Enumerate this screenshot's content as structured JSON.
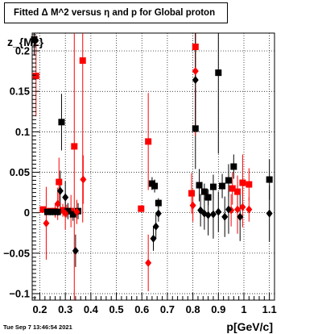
{
  "title": "Fitted Δ M^2 versus η and p for Global proton",
  "timestamp": "Tue Sep  7 13:46:54 2021",
  "chart_data": {
    "type": "scatter",
    "xlabel": "p[GeV/c]",
    "ylabel": "z_{M2}",
    "xlim": [
      0.17,
      1.12
    ],
    "ylim": [
      -0.108,
      0.222
    ],
    "grid": true,
    "x_ticks": [
      0.2,
      0.3,
      0.4,
      0.5,
      0.6,
      0.7,
      0.8,
      0.9,
      1.0,
      1.1
    ],
    "x_tick_labels": [
      "0.2",
      "0.3",
      "0.4",
      "0.5",
      "0.6",
      "0.7",
      "0.8",
      "0.9",
      "1",
      "1.1"
    ],
    "y_ticks": [
      -0.1,
      -0.05,
      0,
      0.05,
      0.1,
      0.15,
      0.2
    ],
    "y_tick_labels": [
      "−0.1",
      "−0.05",
      "0",
      "0.05",
      "0.1",
      "0.15",
      "0.2"
    ],
    "series": [
      {
        "marker": "square",
        "color": "#ff0000",
        "points": [
          {
            "x": 0.185,
            "y": 0.169,
            "err": 0.05
          },
          {
            "x": 0.212,
            "y": 0.004,
            "err": 0.003
          },
          {
            "x": 0.24,
            "y": 0.002,
            "err": 0.003
          },
          {
            "x": 0.26,
            "y": 0.002,
            "err": 0.008
          },
          {
            "x": 0.275,
            "y": 0.038,
            "err": 0.03
          },
          {
            "x": 0.29,
            "y": 0.003,
            "err": 0.008
          },
          {
            "x": 0.305,
            "y": 0.002,
            "err": 0.008
          },
          {
            "x": 0.322,
            "y": 0.002,
            "err": 0.02
          },
          {
            "x": 0.335,
            "y": 0.082,
            "err": 0.3
          },
          {
            "x": 0.368,
            "y": 0.188,
            "err": 0.2
          },
          {
            "x": 0.597,
            "y": 0.005,
            "err": 0.004
          },
          {
            "x": 0.625,
            "y": 0.088,
            "err": 0.06
          },
          {
            "x": 0.795,
            "y": 0.024,
            "err": 0.025
          },
          {
            "x": 0.81,
            "y": 0.205,
            "err": 0.045
          },
          {
            "x": 0.955,
            "y": 0.03,
            "err": 0.02
          },
          {
            "x": 0.975,
            "y": 0.026,
            "err": 0.02
          },
          {
            "x": 0.995,
            "y": 0.037,
            "err": 0.035
          },
          {
            "x": 1.02,
            "y": 0.035,
            "err": 0.02
          }
        ]
      },
      {
        "marker": "square",
        "color": "#000000",
        "points": [
          {
            "x": 0.178,
            "y": 0.214,
            "err": 0.02
          },
          {
            "x": 0.23,
            "y": 0.001,
            "err": 0.003
          },
          {
            "x": 0.25,
            "y": 0.001,
            "err": 0.004
          },
          {
            "x": 0.27,
            "y": 0.001,
            "err": 0.005
          },
          {
            "x": 0.285,
            "y": 0.112,
            "err": 0.035
          },
          {
            "x": 0.31,
            "y": 0.002,
            "err": 0.01
          },
          {
            "x": 0.33,
            "y": -0.002,
            "err": 0.008
          },
          {
            "x": 0.35,
            "y": 0.002,
            "err": 0.01
          },
          {
            "x": 0.64,
            "y": 0.036,
            "err": 0.008
          },
          {
            "x": 0.65,
            "y": 0.033,
            "err": 0.008
          },
          {
            "x": 0.665,
            "y": 0.012,
            "err": 0.006
          },
          {
            "x": 0.81,
            "y": 0.104,
            "err": 0.05
          },
          {
            "x": 0.825,
            "y": 0.034,
            "err": 0.02
          },
          {
            "x": 0.845,
            "y": 0.026,
            "err": 0.01
          },
          {
            "x": 0.86,
            "y": 0.019,
            "err": 0.01
          },
          {
            "x": 0.88,
            "y": 0.032,
            "err": 0.015
          },
          {
            "x": 0.9,
            "y": 0.173,
            "err": 0.1
          },
          {
            "x": 0.915,
            "y": 0.033,
            "err": 0.015
          },
          {
            "x": 0.94,
            "y": 0.04,
            "err": 0.02
          },
          {
            "x": 0.96,
            "y": 0.057,
            "err": 0.015
          },
          {
            "x": 1.1,
            "y": 0.041,
            "err": 0.025
          }
        ]
      },
      {
        "marker": "diamond",
        "color": "#ff0000",
        "points": [
          {
            "x": 0.225,
            "y": -0.013,
            "err": 0.045
          },
          {
            "x": 0.27,
            "y": 0.011,
            "err": 0.02
          },
          {
            "x": 0.3,
            "y": -0.001,
            "err": 0.02
          },
          {
            "x": 0.345,
            "y": 0.001,
            "err": 0.015
          },
          {
            "x": 0.37,
            "y": 0.041,
            "err": 0.03
          },
          {
            "x": 0.625,
            "y": -0.062,
            "err": 0.035
          },
          {
            "x": 0.8,
            "y": 0.009,
            "err": 0.02
          },
          {
            "x": 0.81,
            "y": 0.175,
            "err": 0.08
          },
          {
            "x": 0.95,
            "y": 0.003,
            "err": 0.02
          },
          {
            "x": 0.975,
            "y": 0.004,
            "err": 0.03
          },
          {
            "x": 0.995,
            "y": 0.007,
            "err": 0.025
          },
          {
            "x": 1.02,
            "y": 0.004,
            "err": 0.015
          }
        ]
      },
      {
        "marker": "diamond",
        "color": "#000000",
        "points": [
          {
            "x": 0.28,
            "y": 0.027,
            "err": 0.025
          },
          {
            "x": 0.3,
            "y": 0.019,
            "err": 0.02
          },
          {
            "x": 0.34,
            "y": -0.047,
            "err": 0.02
          },
          {
            "x": 0.645,
            "y": -0.032,
            "err": 0.015
          },
          {
            "x": 0.655,
            "y": -0.017,
            "err": 0.015
          },
          {
            "x": 0.665,
            "y": -0.001,
            "err": 0.01
          },
          {
            "x": 0.81,
            "y": 0.164,
            "err": 0.06
          },
          {
            "x": 0.83,
            "y": 0.003,
            "err": 0.02
          },
          {
            "x": 0.845,
            "y": -0.001,
            "err": 0.02
          },
          {
            "x": 0.86,
            "y": -0.003,
            "err": 0.025
          },
          {
            "x": 0.88,
            "y": -0.002,
            "err": 0.03
          },
          {
            "x": 0.9,
            "y": 0.001,
            "err": 0.025
          },
          {
            "x": 0.925,
            "y": -0.005,
            "err": 0.025
          },
          {
            "x": 0.94,
            "y": 0.004,
            "err": 0.03
          },
          {
            "x": 0.985,
            "y": -0.005,
            "err": 0.03
          },
          {
            "x": 1.1,
            "y": -0.001,
            "err": 0.035
          }
        ]
      }
    ]
  }
}
